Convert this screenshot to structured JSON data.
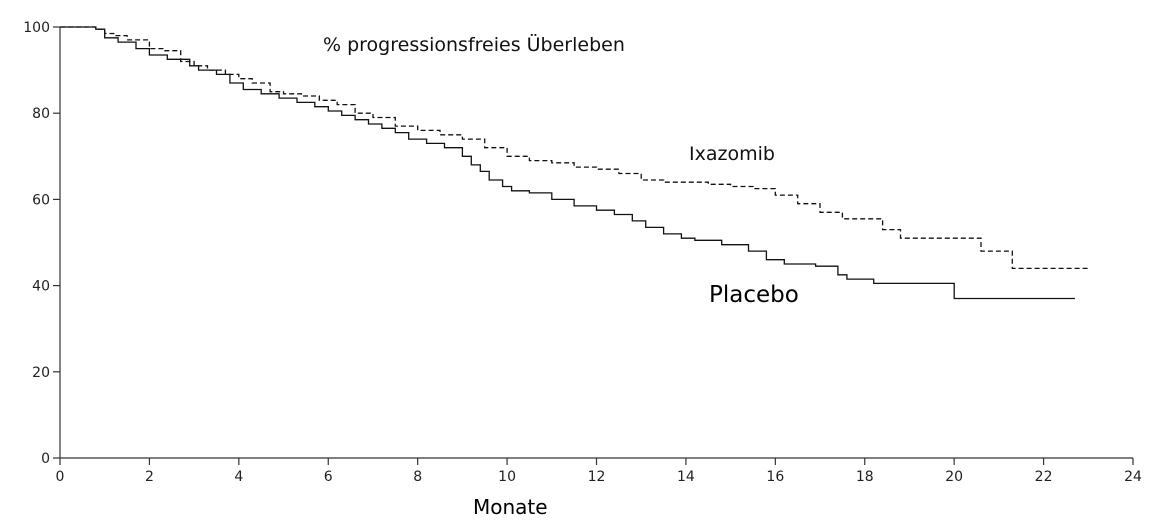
{
  "chart_data": {
    "type": "line",
    "title": "% progressionsfreies Überleben",
    "xlabel": "Monate",
    "ylabel": "",
    "xlim": [
      0,
      24
    ],
    "ylim": [
      0,
      100
    ],
    "xticks": [
      0,
      2,
      4,
      6,
      8,
      10,
      12,
      14,
      16,
      18,
      20,
      22,
      24
    ],
    "yticks": [
      0,
      20,
      40,
      60,
      80,
      100
    ],
    "grid": false,
    "legend": "none",
    "series": [
      {
        "name": "Ixazomib",
        "style": "dashed",
        "step": true,
        "x": [
          0,
          0.8,
          1.0,
          1.2,
          1.5,
          2.0,
          2.3,
          2.7,
          3.0,
          3.3,
          3.7,
          4.0,
          4.3,
          4.7,
          5.0,
          5.4,
          5.8,
          6.2,
          6.6,
          7.0,
          7.5,
          8.0,
          8.5,
          9.0,
          9.5,
          10.0,
          10.5,
          11.0,
          11.5,
          12.0,
          12.5,
          13.0,
          13.5,
          14.0,
          14.5,
          15.0,
          15.5,
          16.0,
          16.5,
          17.0,
          17.5,
          18.4,
          18.8,
          20.1,
          20.6,
          21.3,
          23.0
        ],
        "values": [
          100,
          99.5,
          98.5,
          98,
          97,
          95,
          94.5,
          92,
          91,
          90,
          89,
          88,
          87,
          85,
          84.5,
          84,
          83,
          82,
          80,
          79,
          77,
          76,
          75,
          74,
          72,
          70,
          69,
          68.5,
          67.5,
          67,
          66,
          64.5,
          64,
          64,
          63.5,
          63,
          62.5,
          61,
          59,
          57,
          55.5,
          53,
          51,
          51,
          48,
          44,
          44
        ]
      },
      {
        "name": "Placebo",
        "style": "solid",
        "step": true,
        "x": [
          0,
          0.8,
          1.0,
          1.3,
          1.7,
          2.0,
          2.4,
          2.9,
          3.1,
          3.5,
          3.8,
          4.1,
          4.5,
          4.9,
          5.3,
          5.7,
          6.0,
          6.3,
          6.6,
          6.9,
          7.2,
          7.5,
          7.8,
          8.2,
          8.6,
          9.0,
          9.2,
          9.4,
          9.6,
          9.9,
          10.1,
          10.5,
          11.0,
          11.5,
          12.0,
          12.4,
          12.8,
          13.1,
          13.5,
          13.9,
          14.2,
          14.8,
          15.4,
          15.8,
          16.2,
          16.9,
          17.4,
          17.6,
          18.2,
          20.0,
          22.7
        ],
        "values": [
          100,
          99.5,
          97.5,
          96.5,
          95,
          93.5,
          92.5,
          91,
          90,
          89,
          87,
          85.5,
          84.5,
          83.5,
          82.5,
          81.5,
          80.5,
          79.5,
          78.5,
          77.5,
          76.5,
          75.5,
          74,
          73,
          72,
          70,
          68,
          66.5,
          64.5,
          63,
          62,
          61.5,
          60,
          58.5,
          57.5,
          56.5,
          55,
          53.5,
          52,
          51,
          50.5,
          49.5,
          48,
          46,
          45,
          44.5,
          42.5,
          41.5,
          40.5,
          37,
          37
        ]
      }
    ]
  }
}
